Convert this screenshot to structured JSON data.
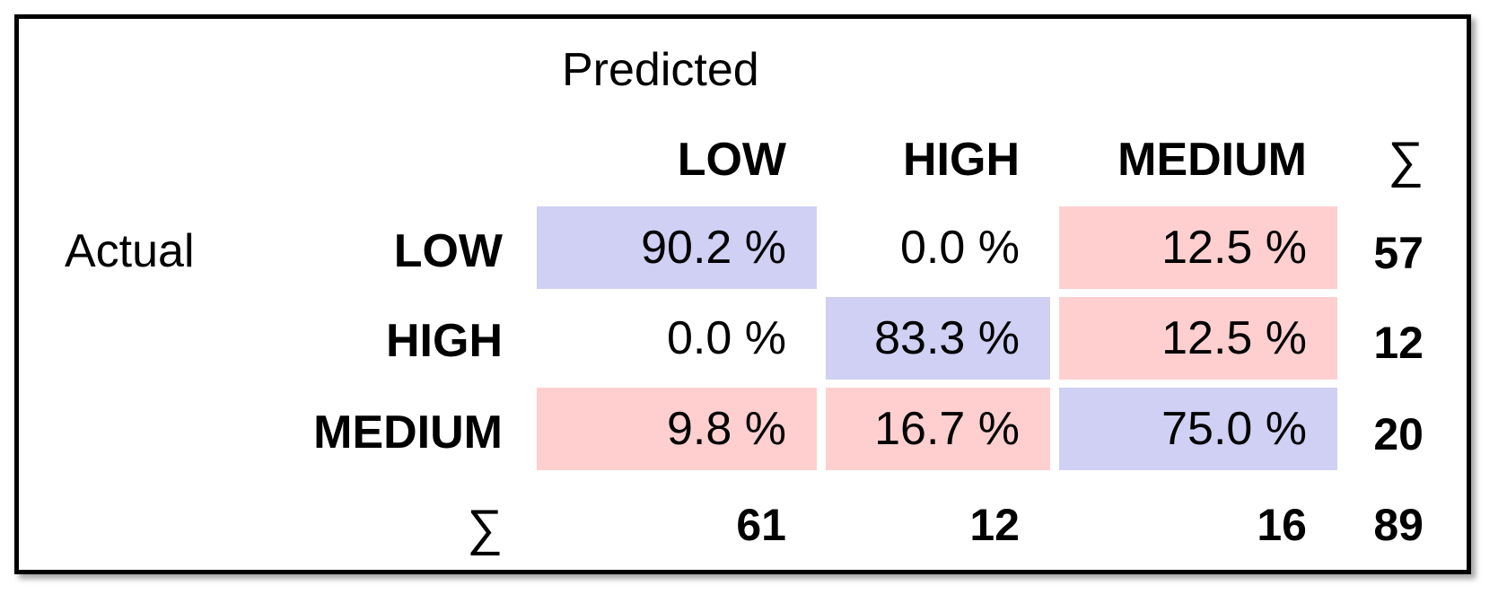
{
  "chart_data": {
    "type": "table",
    "axis_titles": {
      "predicted": "Predicted",
      "actual": "Actual"
    },
    "categories": [
      "LOW",
      "HIGH",
      "MEDIUM"
    ],
    "sum_symbol": "∑",
    "cells": [
      [
        {
          "text": "90.2 %",
          "value": 90.2,
          "color": "#d0d0f5"
        },
        {
          "text": "0.0 %",
          "value": 0.0,
          "color": "#ffffff"
        },
        {
          "text": "12.5 %",
          "value": 12.5,
          "color": "#ffcfcf"
        }
      ],
      [
        {
          "text": "0.0 %",
          "value": 0.0,
          "color": "#ffffff"
        },
        {
          "text": "83.3 %",
          "value": 83.3,
          "color": "#d0d0f5"
        },
        {
          "text": "12.5 %",
          "value": 12.5,
          "color": "#ffcfcf"
        }
      ],
      [
        {
          "text": "9.8 %",
          "value": 9.8,
          "color": "#ffcfcf"
        },
        {
          "text": "16.7 %",
          "value": 16.7,
          "color": "#ffcfcf"
        },
        {
          "text": "75.0 %",
          "value": 75.0,
          "color": "#d0d0f5"
        }
      ]
    ],
    "row_totals": [
      "57",
      "12",
      "20"
    ],
    "column_totals": [
      "61",
      "12",
      "16"
    ],
    "grand_total": "89",
    "colors": {
      "correct": "#d0d0f5",
      "error": "#ffcfcf",
      "empty": "#ffffff"
    }
  }
}
